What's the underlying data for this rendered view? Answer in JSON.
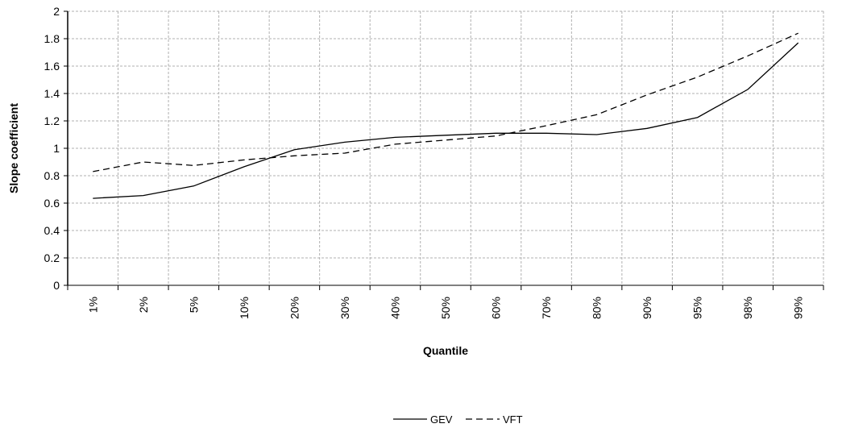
{
  "chart_data": {
    "type": "line",
    "title": "",
    "xlabel": "Quantile",
    "ylabel": "Slope coefficient",
    "categories": [
      "1%",
      "2%",
      "5%",
      "10%",
      "20%",
      "30%",
      "40%",
      "50%",
      "60%",
      "70%",
      "80%",
      "90%",
      "95%",
      "98%",
      "99%"
    ],
    "y_ticks": [
      "0",
      "0.2",
      "0.4",
      "0.6",
      "0.8",
      "1",
      "1.2",
      "1.4",
      "1.6",
      "1.8",
      "2"
    ],
    "ylim": [
      0,
      2
    ],
    "grid": true,
    "legend_position": "bottom-center",
    "series": [
      {
        "name": "GEV",
        "style": "solid",
        "color": "#000000",
        "values": [
          0.635,
          0.655,
          0.725,
          0.865,
          0.99,
          1.045,
          1.08,
          1.095,
          1.11,
          1.11,
          1.1,
          1.145,
          1.225,
          1.43,
          1.77
        ]
      },
      {
        "name": "VFT",
        "style": "dashed",
        "color": "#000000",
        "values": [
          0.83,
          0.9,
          0.875,
          0.915,
          0.945,
          0.965,
          1.03,
          1.06,
          1.09,
          1.165,
          1.245,
          1.39,
          1.52,
          1.675,
          1.84
        ]
      }
    ]
  }
}
